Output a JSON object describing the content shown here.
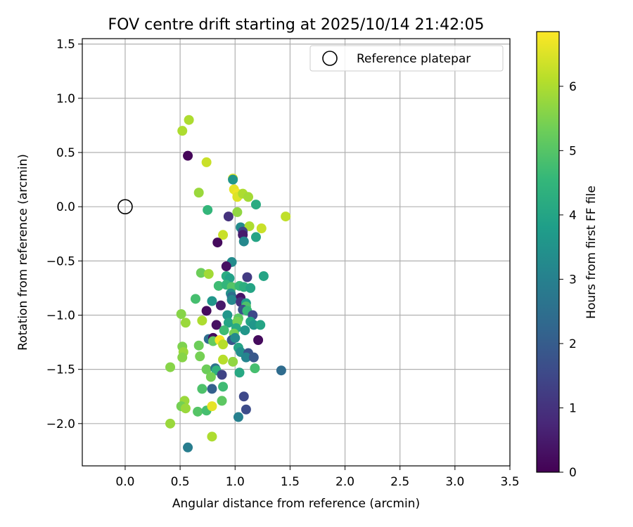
{
  "chart_data": {
    "type": "scatter",
    "title": "FOV centre drift starting at 2025/10/14 21:42:05",
    "xlabel": "Angular distance from reference (arcmin)",
    "ylabel": "Rotation from reference (arcmin)",
    "xlim": [
      -0.39,
      3.5
    ],
    "ylim": [
      -2.39,
      1.55
    ],
    "xticks": [
      0.0,
      0.5,
      1.0,
      1.5,
      2.0,
      2.5,
      3.0,
      3.5
    ],
    "xtick_labels": [
      "0.0",
      "0.5",
      "1.0",
      "1.5",
      "2.0",
      "2.5",
      "3.0",
      "3.5"
    ],
    "yticks": [
      -2.0,
      -1.5,
      -1.0,
      -0.5,
      0.0,
      0.5,
      1.0,
      1.5
    ],
    "ytick_labels": [
      "−2.0",
      "−1.5",
      "−1.0",
      "−0.5",
      "0.0",
      "0.5",
      "1.0",
      "1.5"
    ],
    "grid": true,
    "legend": {
      "position": "top-right",
      "entries": [
        {
          "label": "Reference platepar",
          "marker": "open-circle"
        }
      ]
    },
    "reference_point": {
      "x": 0.0,
      "y": 0.0
    },
    "colorbar": {
      "label": "Hours from first FF file",
      "range": [
        0,
        6.85
      ],
      "ticks": [
        0,
        1,
        2,
        3,
        4,
        5,
        6
      ],
      "tick_labels": [
        "0",
        "1",
        "2",
        "3",
        "4",
        "5",
        "6"
      ],
      "colormap": [
        "#440154",
        "#482878",
        "#3e4989",
        "#31688e",
        "#26828e",
        "#1f9e89",
        "#35b779",
        "#6ece58",
        "#b5de2b",
        "#fde725"
      ]
    },
    "points": [
      {
        "x": 0.52,
        "y": 0.7,
        "h": 6.0
      },
      {
        "x": 0.58,
        "y": 0.8,
        "h": 6.0
      },
      {
        "x": 0.57,
        "y": 0.47,
        "h": 0.1
      },
      {
        "x": 0.74,
        "y": 0.41,
        "h": 6.3
      },
      {
        "x": 0.67,
        "y": 0.13,
        "h": 5.8
      },
      {
        "x": 0.98,
        "y": 0.26,
        "h": 6.5
      },
      {
        "x": 0.98,
        "y": 0.25,
        "h": 3.6
      },
      {
        "x": 0.99,
        "y": 0.16,
        "h": 6.6
      },
      {
        "x": 1.02,
        "y": 0.12,
        "h": 6.7
      },
      {
        "x": 1.02,
        "y": 0.09,
        "h": 6.5
      },
      {
        "x": 1.07,
        "y": 0.12,
        "h": 6.0
      },
      {
        "x": 1.12,
        "y": 0.09,
        "h": 5.9
      },
      {
        "x": 1.19,
        "y": 0.02,
        "h": 4.2
      },
      {
        "x": 1.46,
        "y": -0.09,
        "h": 6.2
      },
      {
        "x": 0.75,
        "y": -0.03,
        "h": 4.5
      },
      {
        "x": 0.94,
        "y": -0.09,
        "h": 1.0
      },
      {
        "x": 1.02,
        "y": -0.05,
        "h": 5.7
      },
      {
        "x": 1.05,
        "y": -0.19,
        "h": 3.3
      },
      {
        "x": 1.13,
        "y": -0.18,
        "h": 6.0
      },
      {
        "x": 1.24,
        "y": -0.2,
        "h": 6.3
      },
      {
        "x": 1.07,
        "y": -0.23,
        "h": 1.4
      },
      {
        "x": 1.07,
        "y": -0.26,
        "h": 0.5
      },
      {
        "x": 0.89,
        "y": -0.26,
        "h": 6.3
      },
      {
        "x": 0.84,
        "y": -0.33,
        "h": 0.2
      },
      {
        "x": 1.08,
        "y": -0.32,
        "h": 3.2
      },
      {
        "x": 1.19,
        "y": -0.28,
        "h": 4.0
      },
      {
        "x": 0.97,
        "y": -0.51,
        "h": 3.3
      },
      {
        "x": 0.92,
        "y": -0.55,
        "h": 0.3
      },
      {
        "x": 0.69,
        "y": -0.61,
        "h": 5.3
      },
      {
        "x": 0.76,
        "y": -0.62,
        "h": 5.9
      },
      {
        "x": 0.92,
        "y": -0.64,
        "h": 4.2
      },
      {
        "x": 0.95,
        "y": -0.66,
        "h": 3.9
      },
      {
        "x": 1.11,
        "y": -0.65,
        "h": 1.2
      },
      {
        "x": 1.26,
        "y": -0.64,
        "h": 4.0
      },
      {
        "x": 0.85,
        "y": -0.73,
        "h": 4.7
      },
      {
        "x": 0.92,
        "y": -0.72,
        "h": 4.5
      },
      {
        "x": 0.97,
        "y": -0.74,
        "h": 5.0
      },
      {
        "x": 1.04,
        "y": -0.73,
        "h": 4.6
      },
      {
        "x": 1.08,
        "y": -0.74,
        "h": 4.3
      },
      {
        "x": 1.14,
        "y": -0.75,
        "h": 4.0
      },
      {
        "x": 0.96,
        "y": -0.8,
        "h": 3.4
      },
      {
        "x": 0.97,
        "y": -0.83,
        "h": 2.5
      },
      {
        "x": 1.05,
        "y": -0.84,
        "h": 0.4
      },
      {
        "x": 0.97,
        "y": -0.86,
        "h": 3.2
      },
      {
        "x": 0.64,
        "y": -0.85,
        "h": 4.8
      },
      {
        "x": 0.79,
        "y": -0.87,
        "h": 3.6
      },
      {
        "x": 0.87,
        "y": -0.91,
        "h": 0.5
      },
      {
        "x": 1.05,
        "y": -0.88,
        "h": 1.0
      },
      {
        "x": 1.1,
        "y": -0.89,
        "h": 3.8
      },
      {
        "x": 1.1,
        "y": -0.92,
        "h": 4.9
      },
      {
        "x": 1.07,
        "y": -0.95,
        "h": 1.7
      },
      {
        "x": 1.11,
        "y": -0.96,
        "h": 4.6
      },
      {
        "x": 0.74,
        "y": -0.96,
        "h": 0.2
      },
      {
        "x": 0.51,
        "y": -0.99,
        "h": 5.6
      },
      {
        "x": 0.93,
        "y": -1.0,
        "h": 3.6
      },
      {
        "x": 1.16,
        "y": -1.0,
        "h": 1.5
      },
      {
        "x": 1.03,
        "y": -1.03,
        "h": 5.1
      },
      {
        "x": 0.55,
        "y": -1.07,
        "h": 5.8
      },
      {
        "x": 0.7,
        "y": -1.05,
        "h": 6.0
      },
      {
        "x": 0.83,
        "y": -1.09,
        "h": 0.3
      },
      {
        "x": 0.94,
        "y": -1.07,
        "h": 4.0
      },
      {
        "x": 1.02,
        "y": -1.06,
        "h": 5.4
      },
      {
        "x": 1.14,
        "y": -1.06,
        "h": 4.0
      },
      {
        "x": 1.17,
        "y": -1.09,
        "h": 3.6
      },
      {
        "x": 1.23,
        "y": -1.09,
        "h": 4.0
      },
      {
        "x": 0.9,
        "y": -1.14,
        "h": 4.7
      },
      {
        "x": 1.01,
        "y": -1.12,
        "h": 4.2
      },
      {
        "x": 1.09,
        "y": -1.14,
        "h": 3.6
      },
      {
        "x": 0.99,
        "y": -1.17,
        "h": 5.4
      },
      {
        "x": 0.76,
        "y": -1.22,
        "h": 2.5
      },
      {
        "x": 0.8,
        "y": -1.21,
        "h": 0.2
      },
      {
        "x": 0.8,
        "y": -1.24,
        "h": 5.2
      },
      {
        "x": 0.86,
        "y": -1.23,
        "h": 6.8
      },
      {
        "x": 0.89,
        "y": -1.27,
        "h": 6.1
      },
      {
        "x": 0.97,
        "y": -1.23,
        "h": 1.8
      },
      {
        "x": 1.0,
        "y": -1.21,
        "h": 3.3
      },
      {
        "x": 1.21,
        "y": -1.23,
        "h": 0.2
      },
      {
        "x": 0.52,
        "y": -1.29,
        "h": 5.5
      },
      {
        "x": 0.67,
        "y": -1.28,
        "h": 5.3
      },
      {
        "x": 0.53,
        "y": -1.34,
        "h": 5.8
      },
      {
        "x": 1.03,
        "y": -1.3,
        "h": 4.0
      },
      {
        "x": 1.05,
        "y": -1.34,
        "h": 3.4
      },
      {
        "x": 1.12,
        "y": -1.35,
        "h": 1.8
      },
      {
        "x": 1.1,
        "y": -1.39,
        "h": 3.1
      },
      {
        "x": 1.17,
        "y": -1.39,
        "h": 1.9
      },
      {
        "x": 0.52,
        "y": -1.39,
        "h": 5.6
      },
      {
        "x": 0.68,
        "y": -1.38,
        "h": 5.4
      },
      {
        "x": 0.89,
        "y": -1.41,
        "h": 6.1
      },
      {
        "x": 0.98,
        "y": -1.43,
        "h": 5.7
      },
      {
        "x": 0.41,
        "y": -1.48,
        "h": 5.6
      },
      {
        "x": 0.74,
        "y": -1.5,
        "h": 5.3
      },
      {
        "x": 0.82,
        "y": -1.49,
        "h": 2.6
      },
      {
        "x": 0.83,
        "y": -1.51,
        "h": 4.4
      },
      {
        "x": 0.88,
        "y": -1.55,
        "h": 1.4
      },
      {
        "x": 1.04,
        "y": -1.53,
        "h": 4.1
      },
      {
        "x": 1.18,
        "y": -1.49,
        "h": 4.8
      },
      {
        "x": 1.42,
        "y": -1.51,
        "h": 2.4
      },
      {
        "x": 0.78,
        "y": -1.57,
        "h": 5.4
      },
      {
        "x": 0.7,
        "y": -1.68,
        "h": 4.9
      },
      {
        "x": 0.79,
        "y": -1.68,
        "h": 2.1
      },
      {
        "x": 0.89,
        "y": -1.66,
        "h": 4.7
      },
      {
        "x": 1.08,
        "y": -1.75,
        "h": 1.5
      },
      {
        "x": 0.54,
        "y": -1.79,
        "h": 5.8
      },
      {
        "x": 0.88,
        "y": -1.79,
        "h": 5.1
      },
      {
        "x": 0.51,
        "y": -1.84,
        "h": 5.4
      },
      {
        "x": 0.55,
        "y": -1.86,
        "h": 5.8
      },
      {
        "x": 0.66,
        "y": -1.89,
        "h": 5.0
      },
      {
        "x": 0.74,
        "y": -1.88,
        "h": 4.8
      },
      {
        "x": 0.79,
        "y": -1.84,
        "h": 6.6
      },
      {
        "x": 1.1,
        "y": -1.87,
        "h": 1.6
      },
      {
        "x": 0.41,
        "y": -2.0,
        "h": 5.8
      },
      {
        "x": 1.03,
        "y": -1.94,
        "h": 3.0
      },
      {
        "x": 0.79,
        "y": -2.12,
        "h": 6.0
      },
      {
        "x": 0.57,
        "y": -2.22,
        "h": 2.9
      }
    ]
  }
}
